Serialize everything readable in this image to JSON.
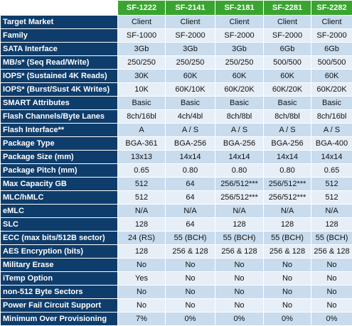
{
  "columns": [
    "SF-1222",
    "SF-2141",
    "SF-2181",
    "SF-2281",
    "SF-2282"
  ],
  "rows": [
    {
      "label": "Target Market",
      "values": [
        "Client",
        "Client",
        "Client",
        "Client",
        "Client"
      ]
    },
    {
      "label": "Family",
      "values": [
        "SF-1000",
        "SF-2000",
        "SF-2000",
        "SF-2000",
        "SF-2000"
      ]
    },
    {
      "label": "SATA Interface",
      "values": [
        "3Gb",
        "3Gb",
        "3Gb",
        "6Gb",
        "6Gb"
      ]
    },
    {
      "label": "MB/s* (Seq Read/Write)",
      "values": [
        "250/250",
        "250/250",
        "250/250",
        "500/500",
        "500/500"
      ]
    },
    {
      "label": "IOPS* (Sustained 4K Reads)",
      "values": [
        "30K",
        "60K",
        "60K",
        "60K",
        "60K"
      ]
    },
    {
      "label": "IOPS* (Burst/Sust 4K Writes)",
      "values": [
        "10K",
        "60K/10K",
        "60K/20K",
        "60K/20K",
        "60K/20K"
      ]
    },
    {
      "label": "SMART Attributes",
      "values": [
        "Basic",
        "Basic",
        "Basic",
        "Basic",
        "Basic"
      ]
    },
    {
      "label": "Flash Channels/Byte Lanes",
      "values": [
        "8ch/16bl",
        "4ch/4bl",
        "8ch/8bl",
        "8ch/8bl",
        "8ch/16bl"
      ]
    },
    {
      "label": "Flash Interface**",
      "values": [
        "A",
        "A / S",
        "A / S",
        "A / S",
        "A / S"
      ]
    },
    {
      "label": "Package Type",
      "values": [
        "BGA-361",
        "BGA-256",
        "BGA-256",
        "BGA-256",
        "BGA-400"
      ]
    },
    {
      "label": "Package Size (mm)",
      "values": [
        "13x13",
        "14x14",
        "14x14",
        "14x14",
        "14x14"
      ]
    },
    {
      "label": "Package Pitch (mm)",
      "values": [
        "0.65",
        "0.80",
        "0.80",
        "0.80",
        "0.65"
      ]
    },
    {
      "label": "Max Capacity GB",
      "values": [
        "512",
        "64",
        "256/512***",
        "256/512***",
        "512"
      ]
    },
    {
      "label": "MLC/hMLC",
      "values": [
        "512",
        "64",
        "256/512***",
        "256/512***",
        "512"
      ]
    },
    {
      "label": "eMLC",
      "values": [
        "N/A",
        "N/A",
        "N/A",
        "N/A",
        "N/A"
      ]
    },
    {
      "label": "SLC",
      "values": [
        "128",
        "64",
        "128",
        "128",
        "128"
      ]
    },
    {
      "label": "ECC (max bits/512B sector)",
      "values": [
        "24 (RS)",
        "55 (BCH)",
        "55 (BCH)",
        "55 (BCH)",
        "55 (BCH)"
      ]
    },
    {
      "label": "AES Encryption (bits)",
      "values": [
        "128",
        "256 & 128",
        "256 & 128",
        "256 & 128",
        "256 & 128"
      ]
    },
    {
      "label": "Military Erase",
      "values": [
        "No",
        "No",
        "No",
        "No",
        "No"
      ]
    },
    {
      "label": "iTemp Option",
      "values": [
        "Yes",
        "No",
        "No",
        "No",
        "No"
      ]
    },
    {
      "label": "non-512 Byte Sectors",
      "values": [
        "No",
        "No",
        "No",
        "No",
        "No"
      ]
    },
    {
      "label": "Power Fail Circuit Support",
      "values": [
        "No",
        "No",
        "No",
        "No",
        "No"
      ]
    },
    {
      "label": "Minimum Over Provisioning",
      "values": [
        "7%",
        "0%",
        "0%",
        "0%",
        "0%"
      ]
    }
  ]
}
